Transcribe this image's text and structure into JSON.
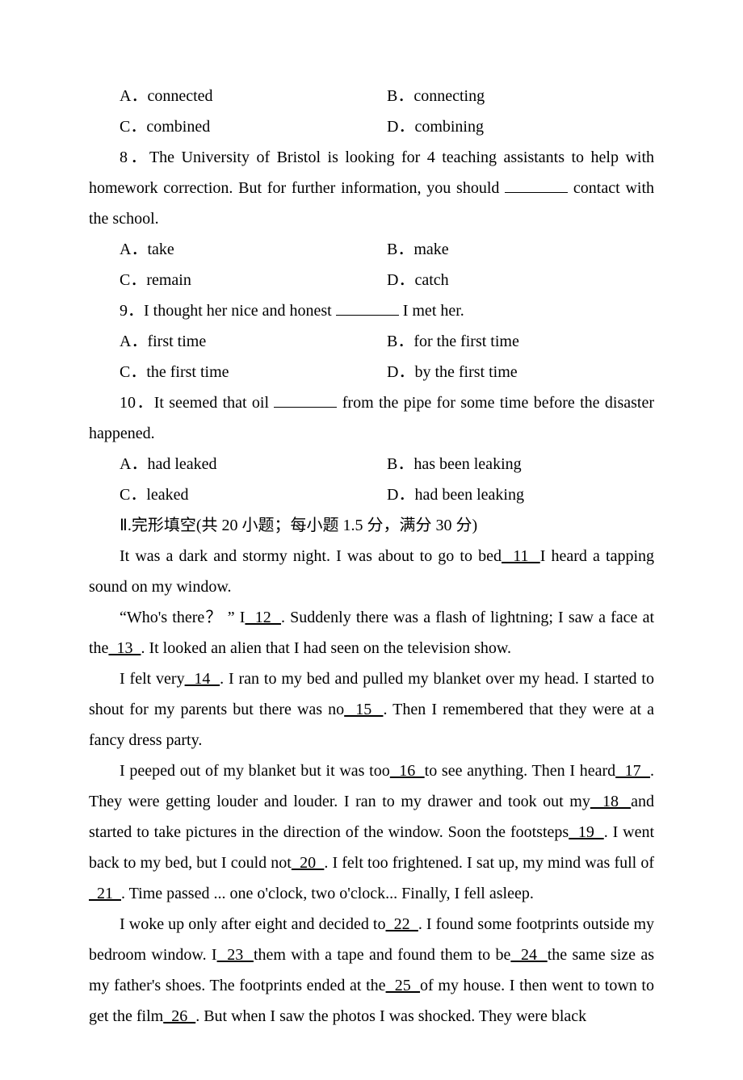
{
  "q7": {
    "opts": {
      "a": "A．connected",
      "b": "B．connecting",
      "c": "C．combined",
      "d": "D．combining"
    }
  },
  "q8": {
    "text_1": "8．The University of Bristol is looking for 4 teaching assistants to help with homework correction. But for further information, you should ",
    "text_2": " contact with the school.",
    "opts": {
      "a": "A．take",
      "b": "B．make",
      "c": "C．remain",
      "d": "D．catch"
    }
  },
  "q9": {
    "text_1": "9．I thought her nice and honest ",
    "text_2": " I met her.",
    "opts": {
      "a": "A．first time",
      "b": "B．for the first time",
      "c": "C．the first time",
      "d": "D．by the first time"
    }
  },
  "q10": {
    "text_1": "10．It seemed that oil ",
    "text_2": " from the pipe for some time before the disaster happened.",
    "opts": {
      "a": "A．had leaked",
      "b": "B．has been leaking",
      "c": "C．leaked",
      "d": "D．had been leaking"
    }
  },
  "section2_title": "Ⅱ.完形填空(共 20 小题；每小题 1.5 分，满分 30 分)",
  "cloze": {
    "p1_a": "It was a dark and stormy night. I was about to go to bed",
    "b11": "  11  ",
    "p1_b": "I heard a tapping sound on my window.",
    "p2_a": "“Who's there？ ” I",
    "b12": "  12  ",
    "p2_b": ". Suddenly there was a flash of lightning; I saw a face at the",
    "b13": "  13  ",
    "p2_c": ". It looked an alien that I had seen on the television show.",
    "p3_a": "I felt very",
    "b14": "  14  ",
    "p3_b": ". I ran to my bed and pulled my blanket over my head. I started to shout for my parents but there was no",
    "b15": "  15  ",
    "p3_c": ". Then I remembered that they were at a fancy dress party.",
    "p4_a": "I peeped out of my blanket but it was too",
    "b16": "  16  ",
    "p4_b": "to see anything. Then I heard",
    "b17": "  17  ",
    "p4_c": ". They were getting louder and louder. I ran to my drawer and took out my",
    "b18": "  18  ",
    "p4_d": "and started to take pictures in the direction of the window. Soon the footsteps",
    "b19": "  19  ",
    "p4_e": ". I went back to my bed, but I could not",
    "b20": "  20  ",
    "p4_f": ". I felt too frightened. I sat up, my mind was full of",
    "b21": "  21  ",
    "p4_g": ". Time passed ... one o'clock, two o'clock... Finally, I fell asleep.",
    "p5_a": "I woke up only after eight and decided to",
    "b22": "  22  ",
    "p5_b": ". I found some footprints outside my bedroom window. I",
    "b23": "  23  ",
    "p5_c": "them with a tape and found them to be",
    "b24": "  24  ",
    "p5_d": "the same size as my father's shoes. The footprints ended at the",
    "b25": "  25  ",
    "p5_e": "of my house. I then went to town to get the film",
    "b26": "  26  ",
    "p5_f": ". But when I saw the photos I was shocked. They were black"
  }
}
